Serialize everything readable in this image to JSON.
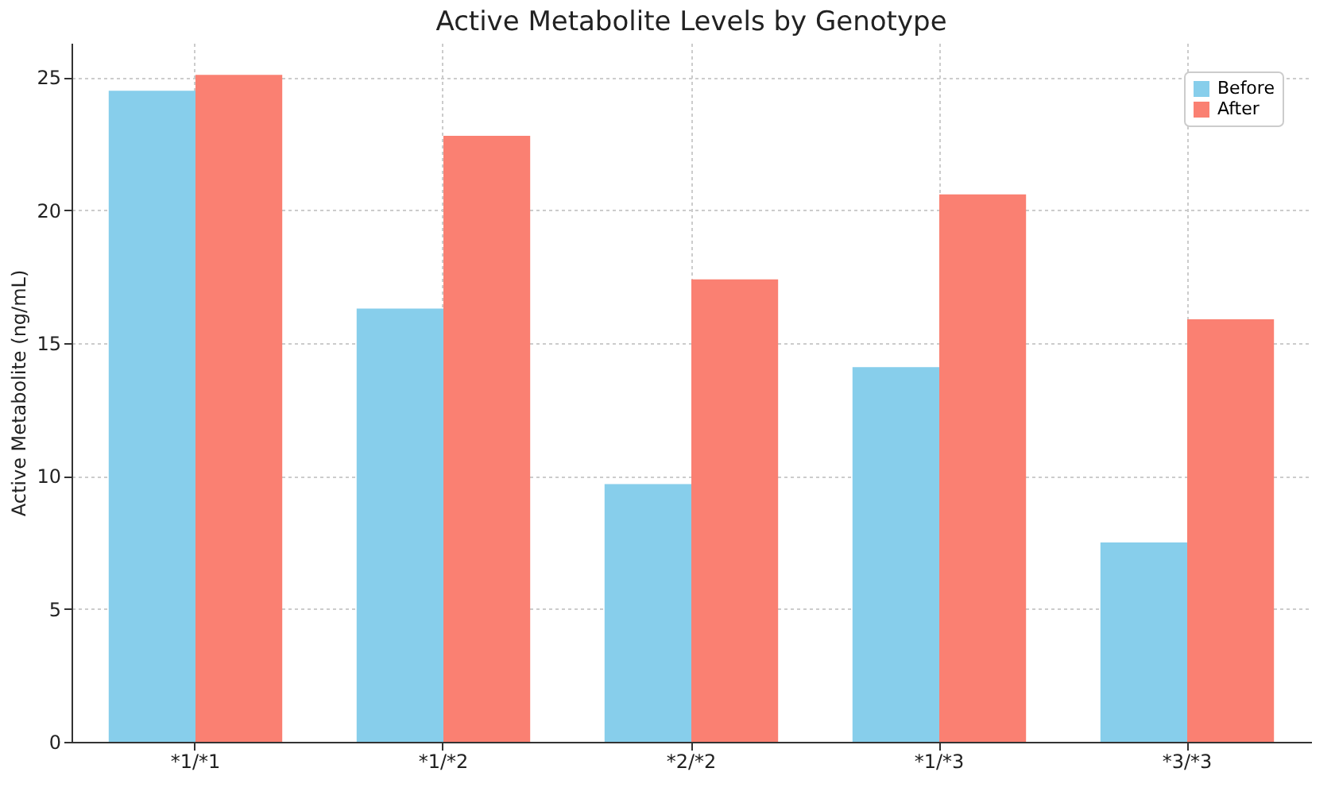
{
  "chart_data": {
    "type": "bar",
    "title": "Active Metabolite Levels by Genotype",
    "ylabel": "Active Metabolite (ng/mL)",
    "categories": [
      "*1/*1",
      "*1/*2",
      "*2/*2",
      "*1/*3",
      "*3/*3"
    ],
    "series": [
      {
        "name": "Before",
        "color": "#87ceeb",
        "values": [
          24.5,
          16.3,
          9.7,
          14.1,
          7.5
        ]
      },
      {
        "name": "After",
        "color": "#fa8072",
        "values": [
          25.1,
          22.8,
          17.4,
          20.6,
          15.9
        ]
      }
    ],
    "ylim": [
      0,
      26.3
    ],
    "yticks": [
      0,
      5,
      10,
      15,
      20,
      25
    ],
    "grid": true,
    "legend": "top right"
  }
}
